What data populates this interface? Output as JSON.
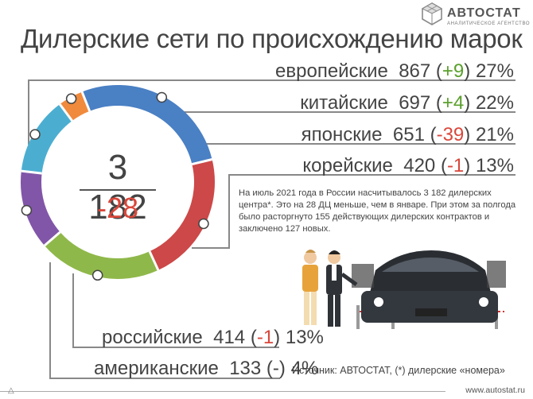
{
  "logo": {
    "name": "АВТОСТАТ",
    "subtitle": "АНАЛИТИЧЕСКОЕ АГЕНТСТВО",
    "icon": "hexagon-logo-icon"
  },
  "chart_data": {
    "type": "pie",
    "variant": "donut",
    "title": "Дилерские сети по происхождению марок",
    "total": "3 182",
    "total_change": "-28",
    "slices": [
      {
        "label": "европейские",
        "value": 867,
        "change": "+9",
        "percent": "27%",
        "color": "#4a80c4"
      },
      {
        "label": "китайские",
        "value": 697,
        "change": "+4",
        "percent": "22%",
        "color": "#cd4848"
      },
      {
        "label": "японские",
        "value": 651,
        "change": "-39",
        "percent": "21%",
        "color": "#8fb84a"
      },
      {
        "label": "корейские",
        "value": 420,
        "change": "-1",
        "percent": "13%",
        "color": "#8156a8"
      },
      {
        "label": "российские",
        "value": 414,
        "change": "-1",
        "percent": "13%",
        "color": "#4baed1"
      },
      {
        "label": "американские",
        "value": 133,
        "change": "-",
        "percent": "4%",
        "color": "#f08a3c"
      }
    ]
  },
  "description": "На июль 2021 года в России насчитывалось 3 182 дилерских центра*. Это на 28 ДЦ меньше, чем в январе. При этом за полгода было расторгнуто 155 действующих дилерских контрактов и заключено 127 новых.",
  "source": "Источник: АВТОСТАТ, (*) дилерские «номера»",
  "footer": {
    "url": "www.autostat.ru"
  }
}
